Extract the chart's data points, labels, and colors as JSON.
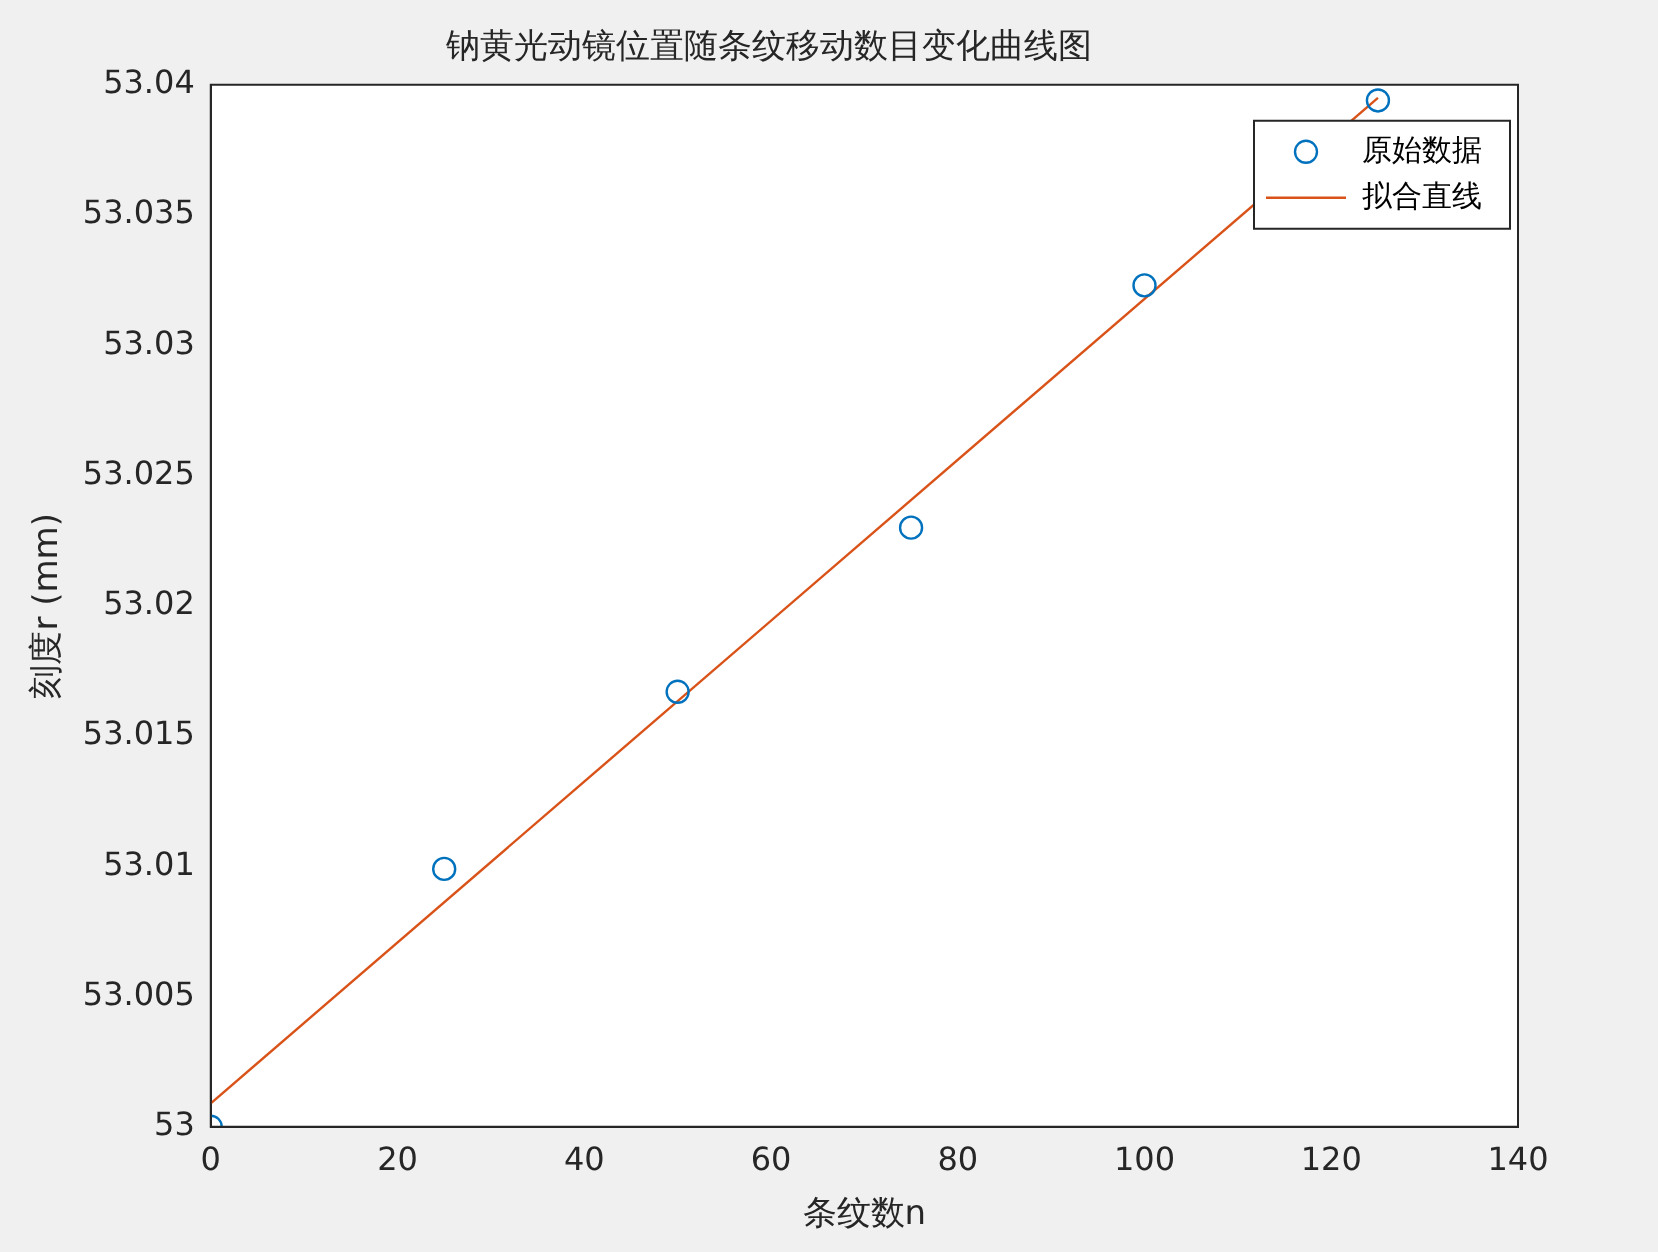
{
  "chart_data": {
    "type": "scatter",
    "title": "钠黄光动镜位置随条纹移动数目变化曲线图",
    "xlabel": "条纹数n",
    "ylabel": "刻度r (mm)",
    "xlim": [
      0,
      140
    ],
    "xticks": [
      0,
      20,
      40,
      60,
      80,
      100,
      120,
      140
    ],
    "ylim": [
      53,
      53.04
    ],
    "yticks": [
      53,
      53.005,
      53.01,
      53.015,
      53.02,
      53.025,
      53.03,
      53.035,
      53.04
    ],
    "grid": false,
    "legend": "top right",
    "series": [
      {
        "name": "原始数据",
        "type": "scatter",
        "marker": "circle",
        "color": "#0072bd",
        "x": [
          0,
          25,
          50,
          75,
          100,
          125
        ],
        "values": [
          53.0,
          53.0099,
          53.0167,
          53.023,
          53.0323,
          53.0394
        ]
      },
      {
        "name": "拟合直线",
        "type": "line",
        "marker": "none",
        "line_style": "solid",
        "color": "#d95319",
        "x": [
          0,
          125
        ],
        "values": [
          53.0009,
          53.0395
        ]
      }
    ]
  }
}
